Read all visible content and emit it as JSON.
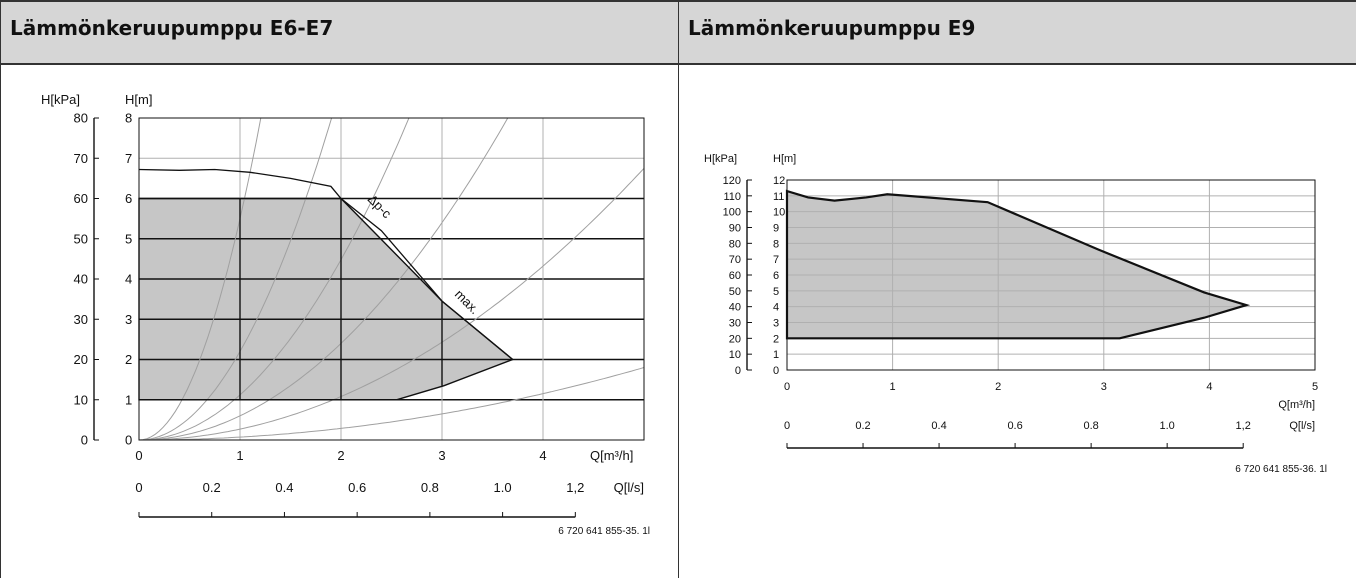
{
  "panels": [
    {
      "title": "Lämmönkeruupumppu E6-E7"
    },
    {
      "title": "Lämmönkeruupumppu E9"
    }
  ],
  "chart_data": [
    {
      "type": "area",
      "title": "Lämmönkeruupumppu E6-E7",
      "xlabel": "Q[m³/h]",
      "x2label": "Q[l/s]",
      "ylabel": "H[m]",
      "y2label": "H[kPa]",
      "xlim": [
        0,
        5
      ],
      "ylim": [
        0,
        8
      ],
      "xticks": [
        "0",
        "1",
        "2",
        "3",
        "4"
      ],
      "x2ticks": [
        "0",
        "0.2",
        "0.4",
        "0.6",
        "0.8",
        "1.0",
        "1,2"
      ],
      "x2tick_values": [
        0,
        0.2,
        0.4,
        0.6,
        0.8,
        1.0,
        1.2
      ],
      "yticks": [
        "0",
        "1",
        "2",
        "3",
        "4",
        "5",
        "6",
        "7",
        "8"
      ],
      "y2ticks": [
        "0",
        "10",
        "20",
        "30",
        "40",
        "50",
        "60",
        "70",
        "80"
      ],
      "grid": true,
      "operating_range": [
        [
          0,
          1
        ],
        [
          2.55,
          1
        ],
        [
          3.02,
          1.35
        ],
        [
          3.7,
          2
        ],
        [
          3.0,
          3.45
        ],
        [
          2.0,
          6
        ],
        [
          0,
          6
        ]
      ],
      "max_curve": [
        [
          0,
          6.72
        ],
        [
          0.4,
          6.7
        ],
        [
          0.75,
          6.72
        ],
        [
          1.1,
          6.65
        ],
        [
          1.5,
          6.5
        ],
        [
          1.9,
          6.3
        ],
        [
          2.0,
          6.0
        ],
        [
          2.4,
          5.2
        ],
        [
          3.0,
          3.45
        ],
        [
          3.7,
          2.0
        ]
      ],
      "system_curve_coefficients": [
        5.5,
        2.2,
        1.12,
        0.6,
        0.27,
        0.072
      ],
      "annotations": [
        "Δp-c",
        "max."
      ],
      "reference": "6 720 641 855-35. 1l"
    },
    {
      "type": "area",
      "title": "Lämmönkeruupumppu E9",
      "xlabel": "Q[m³/h]",
      "x2label": "Q[l/s]",
      "ylabel": "H[m]",
      "y2label": "H[kPa]",
      "xlim": [
        0,
        5
      ],
      "ylim": [
        0,
        12
      ],
      "xticks": [
        "0",
        "1",
        "2",
        "3",
        "4",
        "5"
      ],
      "x2ticks": [
        "0",
        "0.2",
        "0.4",
        "0.6",
        "0.8",
        "1.0",
        "1,2"
      ],
      "x2tick_values": [
        0,
        0.2,
        0.4,
        0.6,
        0.8,
        1.0,
        1.2
      ],
      "yticks": [
        "0",
        "1",
        "2",
        "3",
        "4",
        "5",
        "6",
        "7",
        "8",
        "9",
        "10",
        "11",
        "12"
      ],
      "y2ticks": [
        "0",
        "10",
        "20",
        "30",
        "40",
        "50",
        "60",
        "70",
        "80",
        "90",
        "100",
        "110",
        "120"
      ],
      "grid": true,
      "operating_range": [
        [
          0,
          2
        ],
        [
          3.15,
          2
        ],
        [
          3.95,
          3.3
        ],
        [
          4.35,
          4.1
        ],
        [
          3.95,
          4.9
        ],
        [
          2.95,
          7.6
        ],
        [
          1.9,
          10.6
        ],
        [
          0.95,
          11.1
        ],
        [
          0.75,
          10.9
        ],
        [
          0.45,
          10.7
        ],
        [
          0.2,
          10.9
        ],
        [
          0,
          11.3
        ]
      ],
      "reference": "6 720 641 855-36. 1l"
    }
  ]
}
